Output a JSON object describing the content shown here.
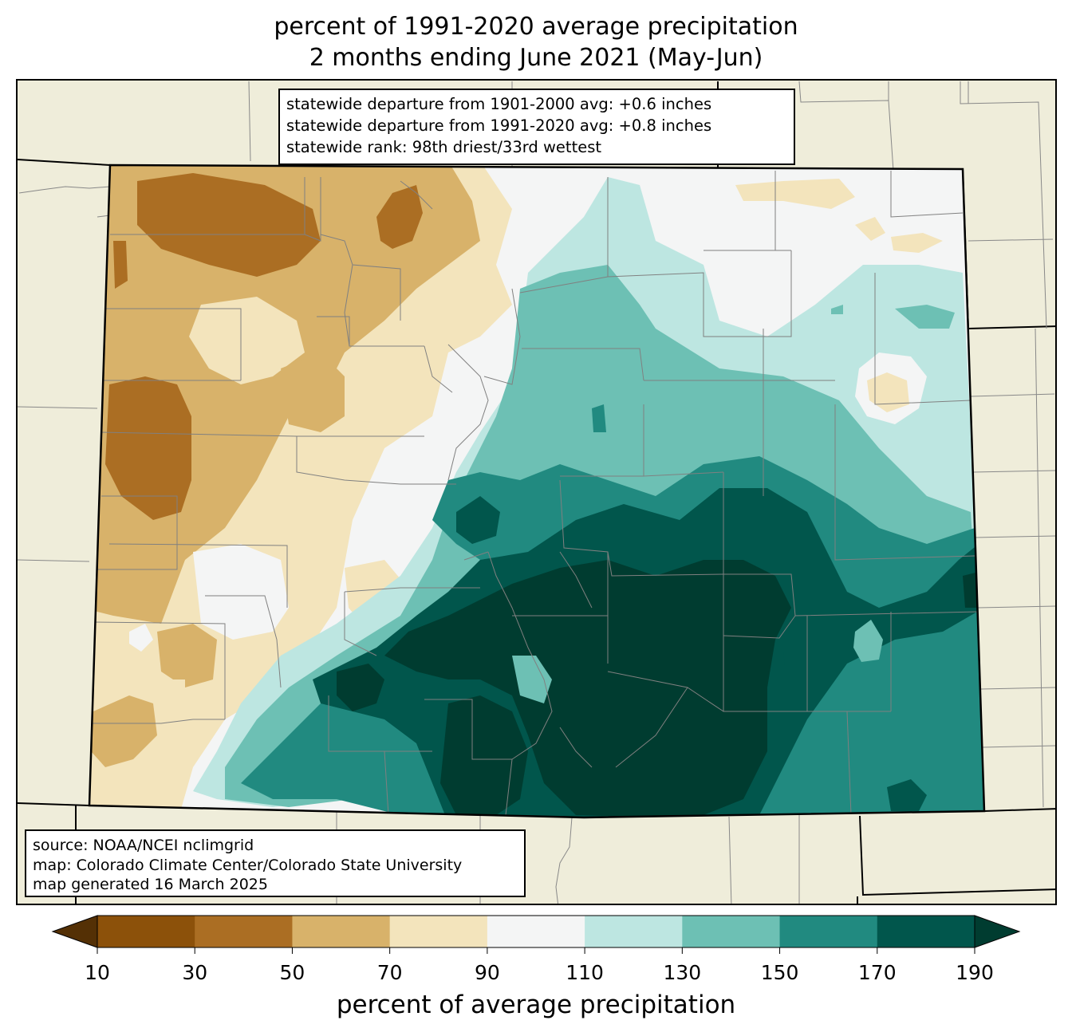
{
  "title": {
    "line1": "percent of 1991-2020 average precipitation",
    "line2": "2 months ending June 2021 (May-Jun)"
  },
  "stats_box": {
    "line1": "statewide departure from 1901-2000 avg: +0.6 inches",
    "line2": "statewide departure from 1991-2020 avg: +0.8 inches",
    "line3": "statewide rank: 98th driest/33rd wettest"
  },
  "source_box": {
    "line1": "source: NOAA/NCEI nclimgrid",
    "line2": "map: Colorado Climate Center/Colorado State University",
    "line3": "map generated 16 March 2025"
  },
  "colorbar": {
    "label": "percent of average precipitation",
    "ticks": [
      "10",
      "30",
      "50",
      "70",
      "90",
      "110",
      "130",
      "150",
      "170",
      "190"
    ],
    "under_color": "#543005",
    "over_color": "#003c30",
    "colors": [
      "#8c510a",
      "#ab6e23",
      "#d8b26a",
      "#f3e4bc",
      "#f4f5f5",
      "#bde6e1",
      "#6dc0b4",
      "#218a80",
      "#01564c"
    ]
  },
  "map": {
    "state": "Colorado",
    "background_color": "#efedda"
  }
}
